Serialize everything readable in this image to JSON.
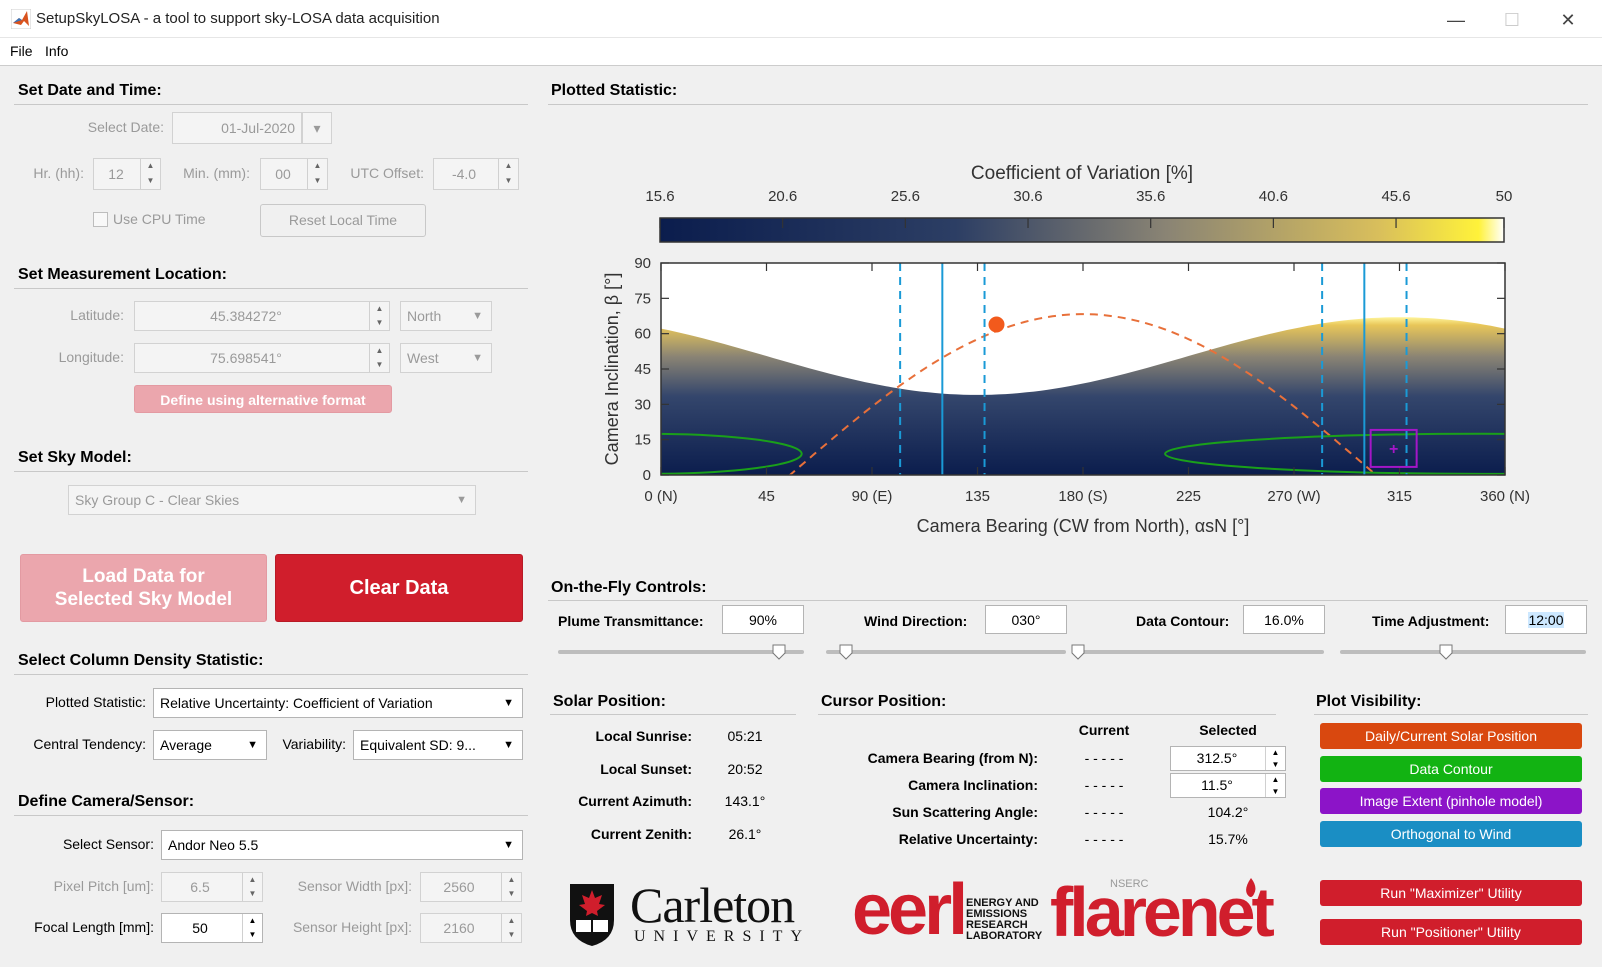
{
  "window": {
    "title": "SetupSkyLOSA - a tool to support sky-LOSA data acquisition"
  },
  "menu": [
    "File",
    "Info"
  ],
  "date_time": {
    "section": "Set Date and Time:",
    "date_label": "Select Date:",
    "date_value": "01-Jul-2020",
    "hr_label": "Hr. (hh):",
    "hr_value": "12",
    "min_label": "Min. (mm):",
    "min_value": "00",
    "utc_label": "UTC Offset:",
    "utc_value": "-4.0",
    "cpu_label": "Use CPU Time",
    "reset_label": "Reset Local Time"
  },
  "location": {
    "section": "Set Measurement Location:",
    "lat_label": "Latitude:",
    "lat_value": "45.384272°",
    "lat_dir": "North",
    "lon_label": "Longitude:",
    "lon_value": "75.698541°",
    "lon_dir": "West",
    "alt_button": "Define using alternative format"
  },
  "sky_model": {
    "section": "Set Sky Model:",
    "value": "Sky Group C - Clear Skies"
  },
  "data_buttons": {
    "load_line1": "Load Data for",
    "load_line2": "Selected Sky Model",
    "clear": "Clear Data"
  },
  "statistic": {
    "section": "Select Column Density Statistic:",
    "plotted_label": "Plotted Statistic:",
    "plotted_value": "Relative Uncertainty: Coefficient of Variation",
    "central_label": "Central Tendency:",
    "central_value": "Average",
    "variability_label": "Variability:",
    "variability_value": "Equivalent SD: 9..."
  },
  "camera": {
    "section": "Define Camera/Sensor:",
    "sensor_label": "Select Sensor:",
    "sensor_value": "Andor Neo 5.5",
    "pitch_label": "Pixel Pitch [um]:",
    "pitch_value": "6.5",
    "width_label": "Sensor Width [px]:",
    "width_value": "2560",
    "focal_label": "Focal Length [mm]:",
    "focal_value": "50",
    "height_label": "Sensor Height [px]:",
    "height_value": "2160"
  },
  "plot": {
    "section": "Plotted Statistic:",
    "colorbar_title": "Coefficient of Variation [%]",
    "colorbar_ticks": [
      "15.6",
      "20.6",
      "25.6",
      "30.6",
      "35.6",
      "40.6",
      "45.6",
      "50"
    ],
    "ylabel": "Camera Inclination, β [°]",
    "xlabel": "Camera Bearing (CW from North), αsN [°]",
    "yticks": [
      "0",
      "15",
      "30",
      "45",
      "60",
      "75",
      "90"
    ],
    "xticks": [
      "0 (N)",
      "45",
      "90 (E)",
      "135",
      "180 (S)",
      "225",
      "270 (W)",
      "315",
      "360 (N)"
    ]
  },
  "chart_data": {
    "type": "heatmap",
    "title": "Coefficient of Variation [%]",
    "xlabel": "Camera Bearing (CW from North), αsN [°]",
    "ylabel": "Camera Inclination, β [°]",
    "xlim": [
      0,
      360
    ],
    "ylim": [
      0,
      90
    ],
    "clim": [
      15.6,
      50
    ],
    "sun_position": {
      "bearing": 143.1,
      "inclination": 63.9
    },
    "selected_point": {
      "bearing": 312.5,
      "inclination": 11.5
    },
    "wind_orthogonal_bearings": [
      120,
      300
    ],
    "contour_value": 16.0
  },
  "controls": {
    "section": "On-the-Fly Controls:",
    "plume_label": "Plume Transmittance:",
    "plume_value": "90%",
    "wind_label": "Wind Direction:",
    "wind_value": "030°",
    "contour_label": "Data Contour:",
    "contour_value": "16.0%",
    "time_label": "Time Adjustment:",
    "time_value": "12:00",
    "plume_level": 0.9,
    "wind_level": 0.083,
    "contour_level": 0.0,
    "time_level": 0.43
  },
  "solar": {
    "section": "Solar Position:",
    "sunrise_label": "Local Sunrise:",
    "sunrise": "05:21",
    "sunset_label": "Local Sunset:",
    "sunset": "20:52",
    "azimuth_label": "Current Azimuth:",
    "azimuth": "143.1°",
    "zenith_label": "Current Zenith:",
    "zenith": "26.1°"
  },
  "cursor": {
    "section": "Cursor Position:",
    "current_header": "Current",
    "selected_header": "Selected",
    "bearing_label": "Camera Bearing (from N):",
    "bearing_current": "- - - - -",
    "bearing_selected": "312.5°",
    "incl_label": "Camera Inclination:",
    "incl_current": "- - - - -",
    "incl_selected": "11.5°",
    "scatter_label": "Sun Scattering Angle:",
    "scatter_current": "- - - - -",
    "scatter_selected": "104.2°",
    "rel_label": "Relative Uncertainty:",
    "rel_current": "- - - - -",
    "rel_selected": "15.7%"
  },
  "visibility": {
    "section": "Plot Visibility:",
    "solar": "Daily/Current Solar Position",
    "contour": "Data Contour",
    "extent": "Image Extent (pinhole model)",
    "wind": "Orthogonal to Wind",
    "maximizer": "Run \"Maximizer\" Utility",
    "positioner": "Run \"Positioner\" Utility",
    "colors": {
      "solar": "#d9480f",
      "contour": "#12b312",
      "extent": "#8c14c8",
      "wind": "#1a8ec4",
      "run": "#d01e2c"
    }
  },
  "logos": {
    "carleton_name": "Carleton",
    "carleton_sub": "UNIVERSITY",
    "eerl": "eerl",
    "eerl_sub": [
      "ENERGY AND",
      "EMISSIONS",
      "RESEARCH",
      "LABORATORY"
    ],
    "nserc": "NSERC",
    "flarenet": "flarenet"
  }
}
